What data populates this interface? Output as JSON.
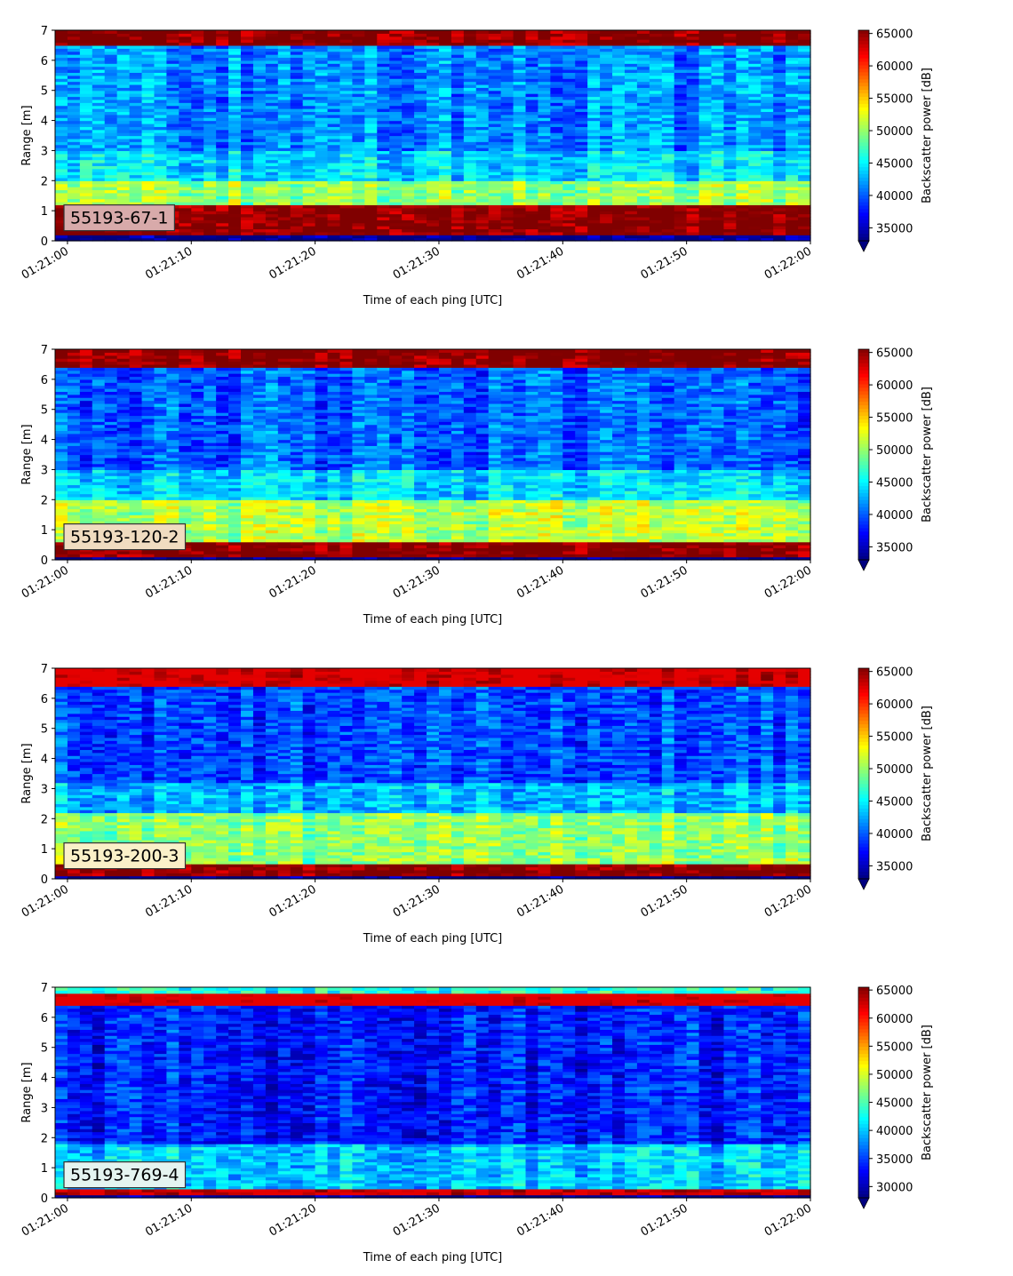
{
  "chart_data": [
    {
      "type": "heatmap",
      "label": "55193-67-1",
      "label_bg": "#d8aaaa",
      "xlabel": "Time of each ping [UTC]",
      "ylabel": "Range [m]",
      "x_ticks": [
        "01:21:00",
        "01:21:10",
        "01:21:20",
        "01:21:30",
        "01:21:40",
        "01:21:50",
        "01:22:00"
      ],
      "xlim": [
        "01:20:59",
        "01:22:00"
      ],
      "ylim": [
        0,
        7
      ],
      "y_ticks": [
        0,
        1,
        2,
        3,
        4,
        5,
        6,
        7
      ],
      "colorbar": {
        "label": "Backscatter power [dB]",
        "colormap": "jet",
        "ticks": [
          35000,
          40000,
          45000,
          50000,
          55000,
          60000,
          65000
        ],
        "range": [
          33000,
          65500
        ],
        "extend": "min"
      },
      "bands": [
        {
          "range": [
            0.2,
            1.2
          ],
          "value": 65500
        },
        {
          "range": [
            1.2,
            2.0
          ],
          "value": 50000
        },
        {
          "range": [
            2.0,
            3.0
          ],
          "value": 44000
        },
        {
          "range": [
            3.0,
            6.5
          ],
          "value": 41500
        },
        {
          "range": [
            6.5,
            7.0
          ],
          "value": 65500
        }
      ],
      "grid": false
    },
    {
      "type": "heatmap",
      "label": "55193-120-2",
      "label_bg": "#f0dcc0",
      "xlabel": "Time of each ping [UTC]",
      "ylabel": "Range [m]",
      "x_ticks": [
        "01:21:00",
        "01:21:10",
        "01:21:20",
        "01:21:30",
        "01:21:40",
        "01:21:50",
        "01:22:00"
      ],
      "xlim": [
        "01:20:59",
        "01:22:00"
      ],
      "ylim": [
        0,
        7
      ],
      "y_ticks": [
        0,
        1,
        2,
        3,
        4,
        5,
        6,
        7
      ],
      "colorbar": {
        "label": "Backscatter power [dB]",
        "colormap": "jet",
        "ticks": [
          35000,
          40000,
          45000,
          50000,
          55000,
          60000,
          65000
        ],
        "range": [
          33000,
          65500
        ],
        "extend": "min"
      },
      "bands": [
        {
          "range": [
            0.1,
            0.6
          ],
          "value": 65500
        },
        {
          "range": [
            0.6,
            2.0
          ],
          "value": 51000
        },
        {
          "range": [
            2.0,
            3.0
          ],
          "value": 44000
        },
        {
          "range": [
            3.0,
            6.4
          ],
          "value": 40000
        },
        {
          "range": [
            6.4,
            7.0
          ],
          "value": 65500
        }
      ],
      "grid": false
    },
    {
      "type": "heatmap",
      "label": "55193-200-3",
      "label_bg": "#faf0c8",
      "xlabel": "Time of each ping [UTC]",
      "ylabel": "Range [m]",
      "x_ticks": [
        "01:21:00",
        "01:21:10",
        "01:21:20",
        "01:21:30",
        "01:21:40",
        "01:21:50",
        "01:22:00"
      ],
      "xlim": [
        "01:20:59",
        "01:22:00"
      ],
      "ylim": [
        0,
        7
      ],
      "y_ticks": [
        0,
        1,
        2,
        3,
        4,
        5,
        6,
        7
      ],
      "colorbar": {
        "label": "Backscatter power [dB]",
        "colormap": "jet",
        "ticks": [
          35000,
          40000,
          45000,
          50000,
          55000,
          60000,
          65000
        ],
        "range": [
          33000,
          65500
        ],
        "extend": "min"
      },
      "bands": [
        {
          "range": [
            0.1,
            0.45
          ],
          "value": 65500
        },
        {
          "range": [
            0.45,
            2.2
          ],
          "value": 50000
        },
        {
          "range": [
            2.2,
            3.2
          ],
          "value": 43000
        },
        {
          "range": [
            3.2,
            6.4
          ],
          "value": 39500
        },
        {
          "range": [
            6.4,
            7.0
          ],
          "value": 62000
        }
      ],
      "grid": false
    },
    {
      "type": "heatmap",
      "label": "55193-769-4",
      "label_bg": "#e4f4f0",
      "xlabel": "Time of each ping [UTC]",
      "ylabel": "Range [m]",
      "x_ticks": [
        "01:21:00",
        "01:21:10",
        "01:21:20",
        "01:21:30",
        "01:21:40",
        "01:21:50",
        "01:22:00"
      ],
      "xlim": [
        "01:20:59",
        "01:22:00"
      ],
      "ylim": [
        0,
        7
      ],
      "y_ticks": [
        0,
        1,
        2,
        3,
        4,
        5,
        6,
        7
      ],
      "colorbar": {
        "label": "Backscatter power [dB]",
        "colormap": "jet",
        "ticks": [
          30000,
          35000,
          40000,
          45000,
          50000,
          55000,
          60000,
          65000
        ],
        "range": [
          28000,
          65500
        ],
        "extend": "min"
      },
      "bands": [
        {
          "range": [
            0.1,
            0.35
          ],
          "value": 62000
        },
        {
          "range": [
            0.35,
            1.8
          ],
          "value": 40000
        },
        {
          "range": [
            1.8,
            6.4
          ],
          "value": 33500
        },
        {
          "range": [
            6.4,
            6.8
          ],
          "value": 60000
        },
        {
          "range": [
            6.8,
            7.0
          ],
          "value": 43000
        }
      ],
      "grid": false
    }
  ]
}
